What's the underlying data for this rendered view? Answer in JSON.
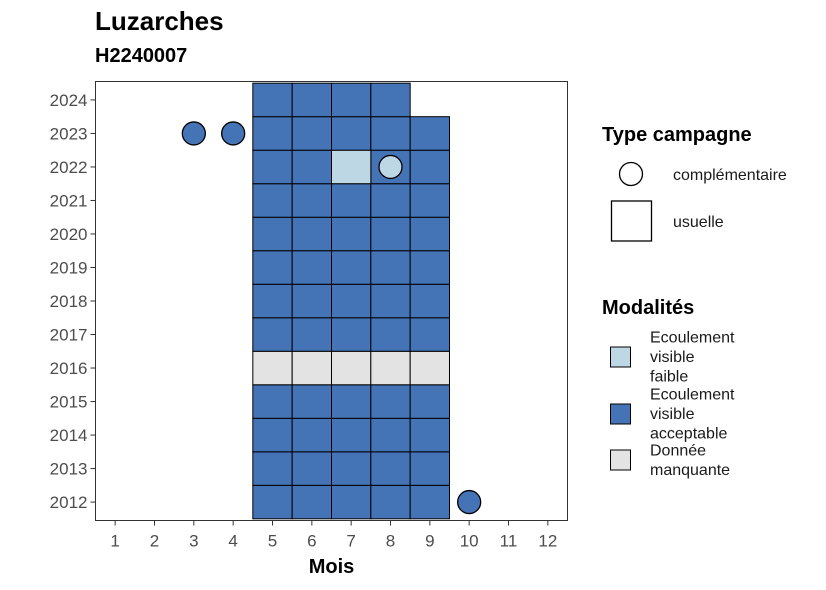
{
  "chart_data": {
    "type": "heatmap",
    "title": "Luzarches",
    "subtitle": "H2240007",
    "xlabel": "Mois",
    "ylabel": "",
    "x_ticks": [
      1,
      2,
      3,
      4,
      5,
      6,
      7,
      8,
      9,
      10,
      11,
      12
    ],
    "y_ticks": [
      2012,
      2013,
      2014,
      2015,
      2016,
      2017,
      2018,
      2019,
      2020,
      2021,
      2022,
      2023,
      2024
    ],
    "xlim": [
      0.5,
      12.5
    ],
    "ylim": [
      2011.45,
      2024.55
    ],
    "colors": {
      "faible": "#bed7e5",
      "acceptable": "#4574b6",
      "manquante": "#e3e3e3"
    },
    "cells": [
      {
        "year": 2012,
        "months": [
          5,
          6,
          7,
          8,
          9
        ],
        "modalite": "acceptable"
      },
      {
        "year": 2013,
        "months": [
          5,
          6,
          7,
          8,
          9
        ],
        "modalite": "acceptable"
      },
      {
        "year": 2014,
        "months": [
          5,
          6,
          7,
          8,
          9
        ],
        "modalite": "acceptable"
      },
      {
        "year": 2015,
        "months": [
          5,
          6,
          7,
          8,
          9
        ],
        "modalite": "acceptable"
      },
      {
        "year": 2016,
        "months": [
          5,
          6,
          7,
          8,
          9
        ],
        "modalite": "manquante"
      },
      {
        "year": 2017,
        "months": [
          5,
          6,
          7,
          8,
          9
        ],
        "modalite": "acceptable"
      },
      {
        "year": 2018,
        "months": [
          5,
          6,
          7,
          8,
          9
        ],
        "modalite": "acceptable"
      },
      {
        "year": 2019,
        "months": [
          5,
          6,
          7,
          8,
          9
        ],
        "modalite": "acceptable"
      },
      {
        "year": 2020,
        "months": [
          5,
          6,
          7,
          8,
          9
        ],
        "modalite": "acceptable"
      },
      {
        "year": 2021,
        "months": [
          5,
          6,
          7,
          8,
          9
        ],
        "modalite": "acceptable"
      },
      {
        "year": 2022,
        "months": [
          5,
          6,
          8,
          9
        ],
        "modalite": "acceptable"
      },
      {
        "year": 2022,
        "months": [
          7
        ],
        "modalite": "faible"
      },
      {
        "year": 2023,
        "months": [
          5,
          6,
          7,
          8,
          9
        ],
        "modalite": "acceptable"
      },
      {
        "year": 2024,
        "months": [
          5,
          6,
          7,
          8
        ],
        "modalite": "acceptable"
      }
    ],
    "points": [
      {
        "month": 3,
        "year": 2023,
        "modalite": "acceptable"
      },
      {
        "month": 4,
        "year": 2023,
        "modalite": "acceptable"
      },
      {
        "month": 8,
        "year": 2022,
        "modalite": "faible"
      },
      {
        "month": 10,
        "year": 2012,
        "modalite": "acceptable"
      }
    ],
    "legend_type": {
      "title": "Type campagne",
      "items": [
        {
          "shape": "circle",
          "label": "complémentaire"
        },
        {
          "shape": "square",
          "label": "usuelle"
        }
      ]
    },
    "legend_modalites": {
      "title": "Modalités",
      "items": [
        {
          "key": "faible",
          "lines": [
            "Ecoulement",
            "visible",
            "faible"
          ]
        },
        {
          "key": "acceptable",
          "lines": [
            "Ecoulement",
            "visible",
            "acceptable"
          ]
        },
        {
          "key": "manquante",
          "lines": [
            "Donnée",
            "manquante"
          ]
        }
      ]
    },
    "legend_placement": "right",
    "grid": false
  }
}
